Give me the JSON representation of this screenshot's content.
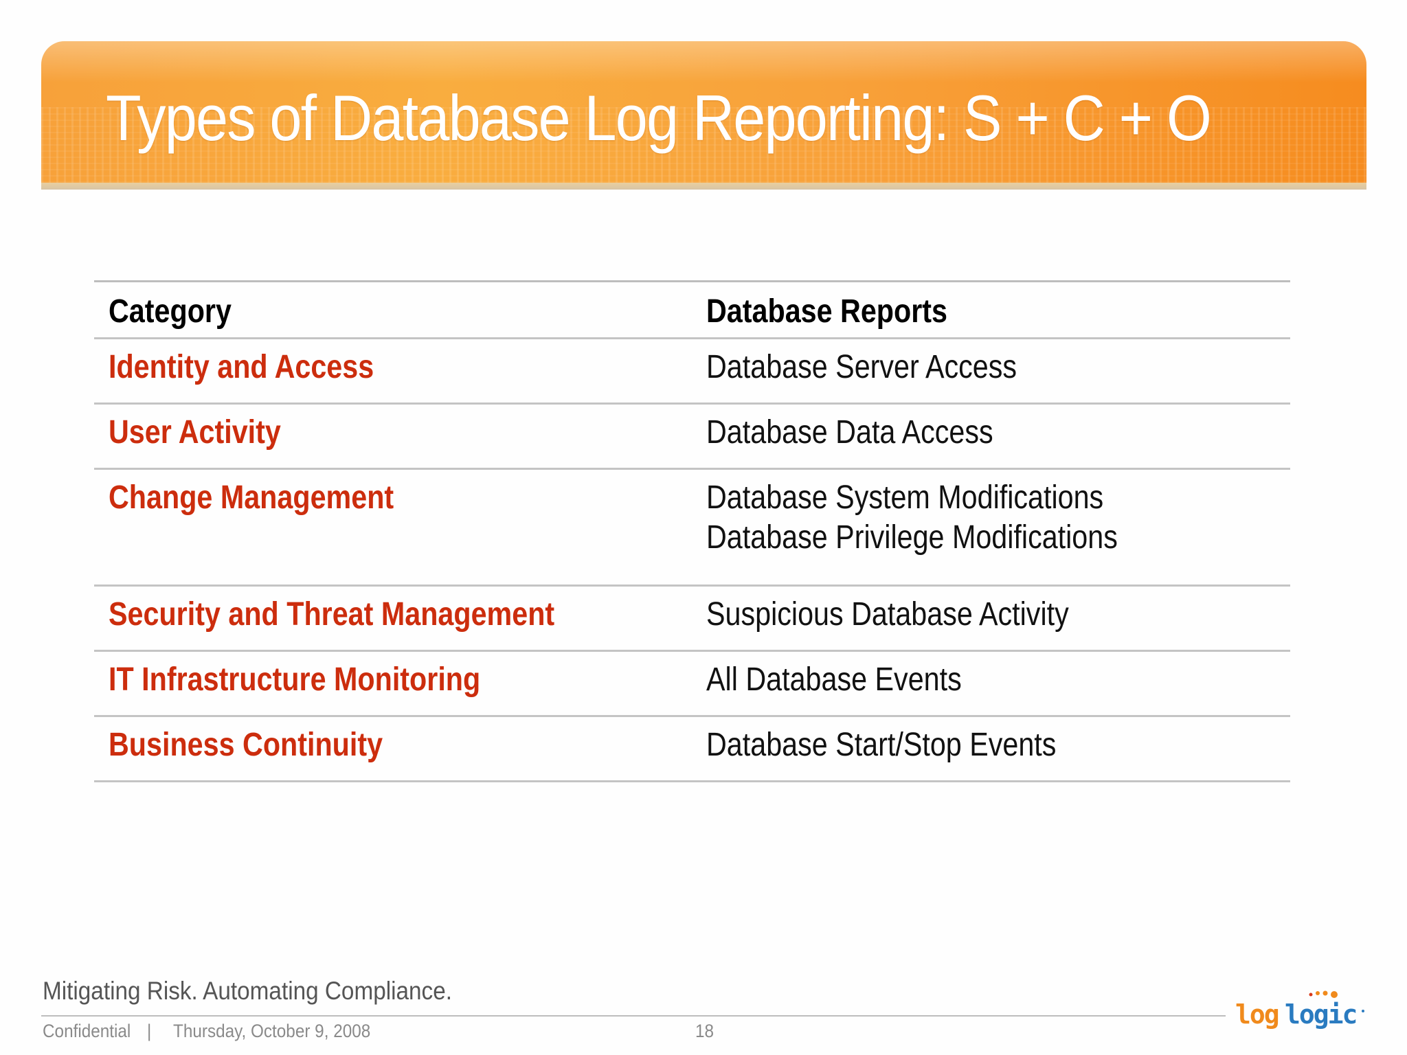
{
  "slide": {
    "title": "Types of Database Log Reporting: S + C + O"
  },
  "table": {
    "headers": [
      "Category",
      "Database Reports"
    ],
    "rows": [
      {
        "category": "Identity and Access",
        "reports": [
          "Database Server Access"
        ]
      },
      {
        "category": "User Activity",
        "reports": [
          "Database Data Access"
        ]
      },
      {
        "category": "Change Management",
        "reports": [
          "Database System Modifications",
          "Database Privilege Modifications"
        ]
      },
      {
        "category": "Security and Threat Management",
        "reports": [
          "Suspicious Database Activity"
        ]
      },
      {
        "category": "IT Infrastructure Monitoring",
        "reports": [
          "All Database Events"
        ]
      },
      {
        "category": "Business Continuity",
        "reports": [
          "Database Start/Stop Events"
        ]
      }
    ]
  },
  "footer": {
    "tagline": "Mitigating Risk. Automating Compliance.",
    "confidential": "Confidential",
    "separator": "|",
    "date": "Thursday, October 9, 2008",
    "page_number": "18"
  },
  "logo": {
    "text": "loglogic",
    "colors": {
      "orange": "#f08a1c",
      "blue": "#2a7bc0",
      "red": "#d93a1a"
    }
  },
  "colors": {
    "banner_orange": "#f7a13a",
    "category_red": "#cc2d0d",
    "rule_gray": "#c4c4c4"
  }
}
